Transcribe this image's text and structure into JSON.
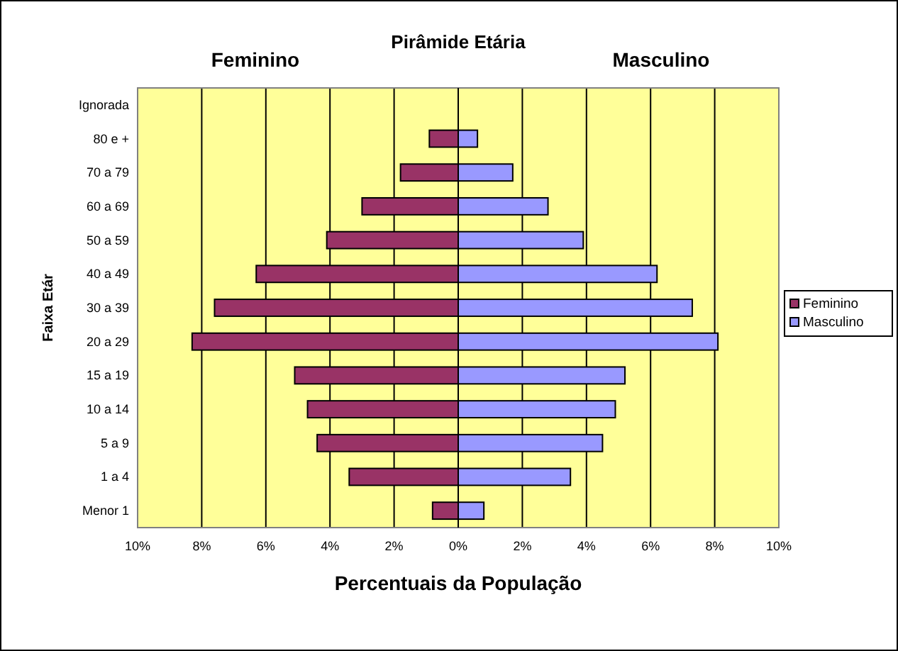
{
  "chart_data": {
    "type": "bar",
    "orientation": "horizontal",
    "stacked": true,
    "title": "Pirâmide Etária",
    "xlabel": "Percentuais da População",
    "ylabel": "Faixa Etár",
    "annotations": [
      "Feminino",
      "Masculino"
    ],
    "categories": [
      "Ignorada",
      "80 e +",
      "70 a 79",
      "60 a 69",
      "50 a 59",
      "40 a 49",
      "30 a 39",
      "20 a 29",
      "15 a 19",
      "10 a 14",
      "5 a 9",
      "1 a 4",
      "Menor 1"
    ],
    "series": [
      {
        "name": "Feminino",
        "color": "#993366",
        "values": [
          0,
          -0.9,
          -1.8,
          -3.0,
          -4.1,
          -6.3,
          -7.6,
          -8.3,
          -5.1,
          -4.7,
          -4.4,
          -3.4,
          -0.8
        ]
      },
      {
        "name": "Masculino",
        "color": "#9999ff",
        "values": [
          0,
          0.6,
          1.7,
          2.8,
          3.9,
          6.2,
          7.3,
          8.1,
          5.2,
          4.9,
          4.5,
          3.5,
          0.8
        ]
      }
    ],
    "xlim": [
      -10,
      10
    ],
    "xticks": [
      {
        "value": -10,
        "label": "10%"
      },
      {
        "value": -8,
        "label": "8%"
      },
      {
        "value": -6,
        "label": "6%"
      },
      {
        "value": -4,
        "label": "4%"
      },
      {
        "value": -2,
        "label": "2%"
      },
      {
        "value": 0,
        "label": "0%"
      },
      {
        "value": 2,
        "label": "2%"
      },
      {
        "value": 4,
        "label": "4%"
      },
      {
        "value": 6,
        "label": "6%"
      },
      {
        "value": 8,
        "label": "8%"
      },
      {
        "value": 10,
        "label": "10%"
      }
    ],
    "grid": "x",
    "legend": "right"
  }
}
